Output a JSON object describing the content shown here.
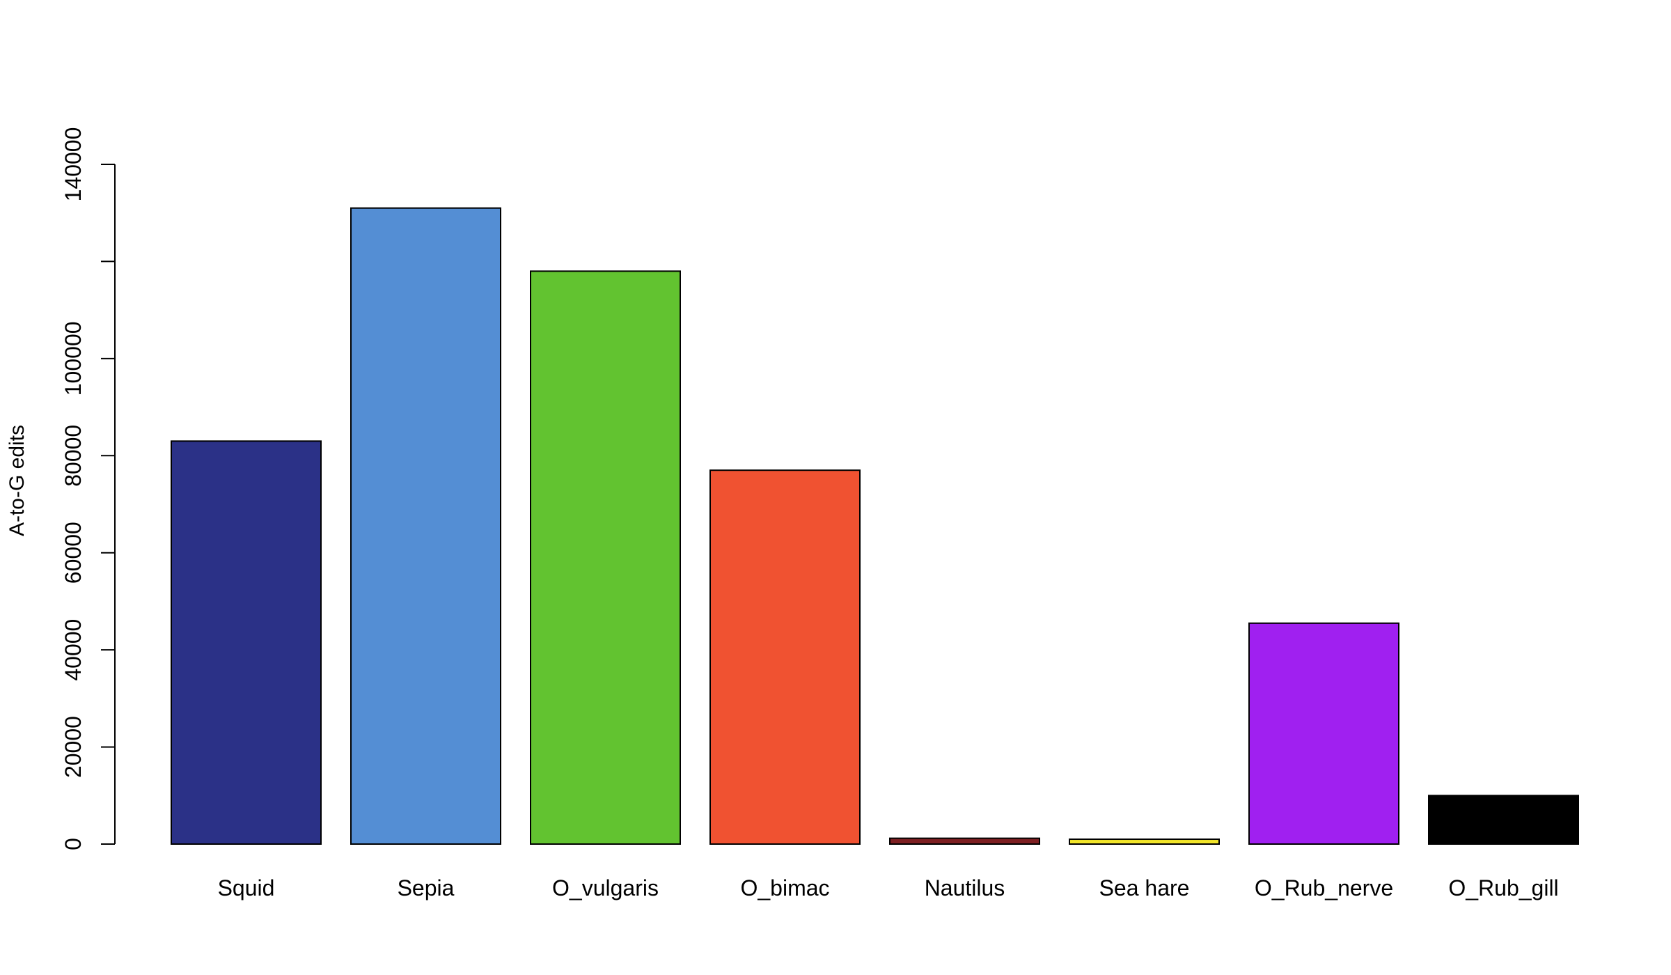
{
  "chart_data": {
    "type": "bar",
    "title": "",
    "xlabel": "",
    "ylabel": "A-to-G edits",
    "categories": [
      "Squid",
      "Sepia",
      "O_vulgaris",
      "O_bimac",
      "Nautilus",
      "Sea hare",
      "O_Rub_nerve",
      "O_Rub_gill"
    ],
    "values": [
      83000,
      131000,
      118000,
      77000,
      1200,
      1000,
      45500,
      10000
    ],
    "colors": [
      "#2B3187",
      "#548ED4",
      "#62C330",
      "#F05231",
      "#7E1F22",
      "#F2E52A",
      "#A020F0",
      "#000000"
    ],
    "ylim": [
      0,
      140000
    ],
    "yticks": [
      0,
      20000,
      40000,
      60000,
      80000,
      100000,
      120000,
      140000
    ],
    "ytick_labels": [
      "0",
      "20000",
      "40000",
      "60000",
      "80000",
      "100000",
      "",
      "140000"
    ],
    "grid": false,
    "legend": "none"
  }
}
